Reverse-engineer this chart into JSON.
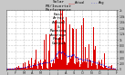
{
  "title": "Solar PV/Inverter Performance East Array Actual & Running Average Power Output",
  "title_fontsize": 3.2,
  "bg_color": "#c8c8c8",
  "plot_bg_color": "#ffffff",
  "bar_color": "#dd0000",
  "avg_color": "#0000dd",
  "avg_linewidth": 0.6,
  "grid_color": "#999999",
  "ylim": [
    0,
    2000
  ],
  "xlim_n": 350,
  "seed": 12345,
  "legend_items": [
    "Actual Power",
    "Running Average"
  ],
  "legend_colors": [
    "#dd0000",
    "#0000dd"
  ]
}
